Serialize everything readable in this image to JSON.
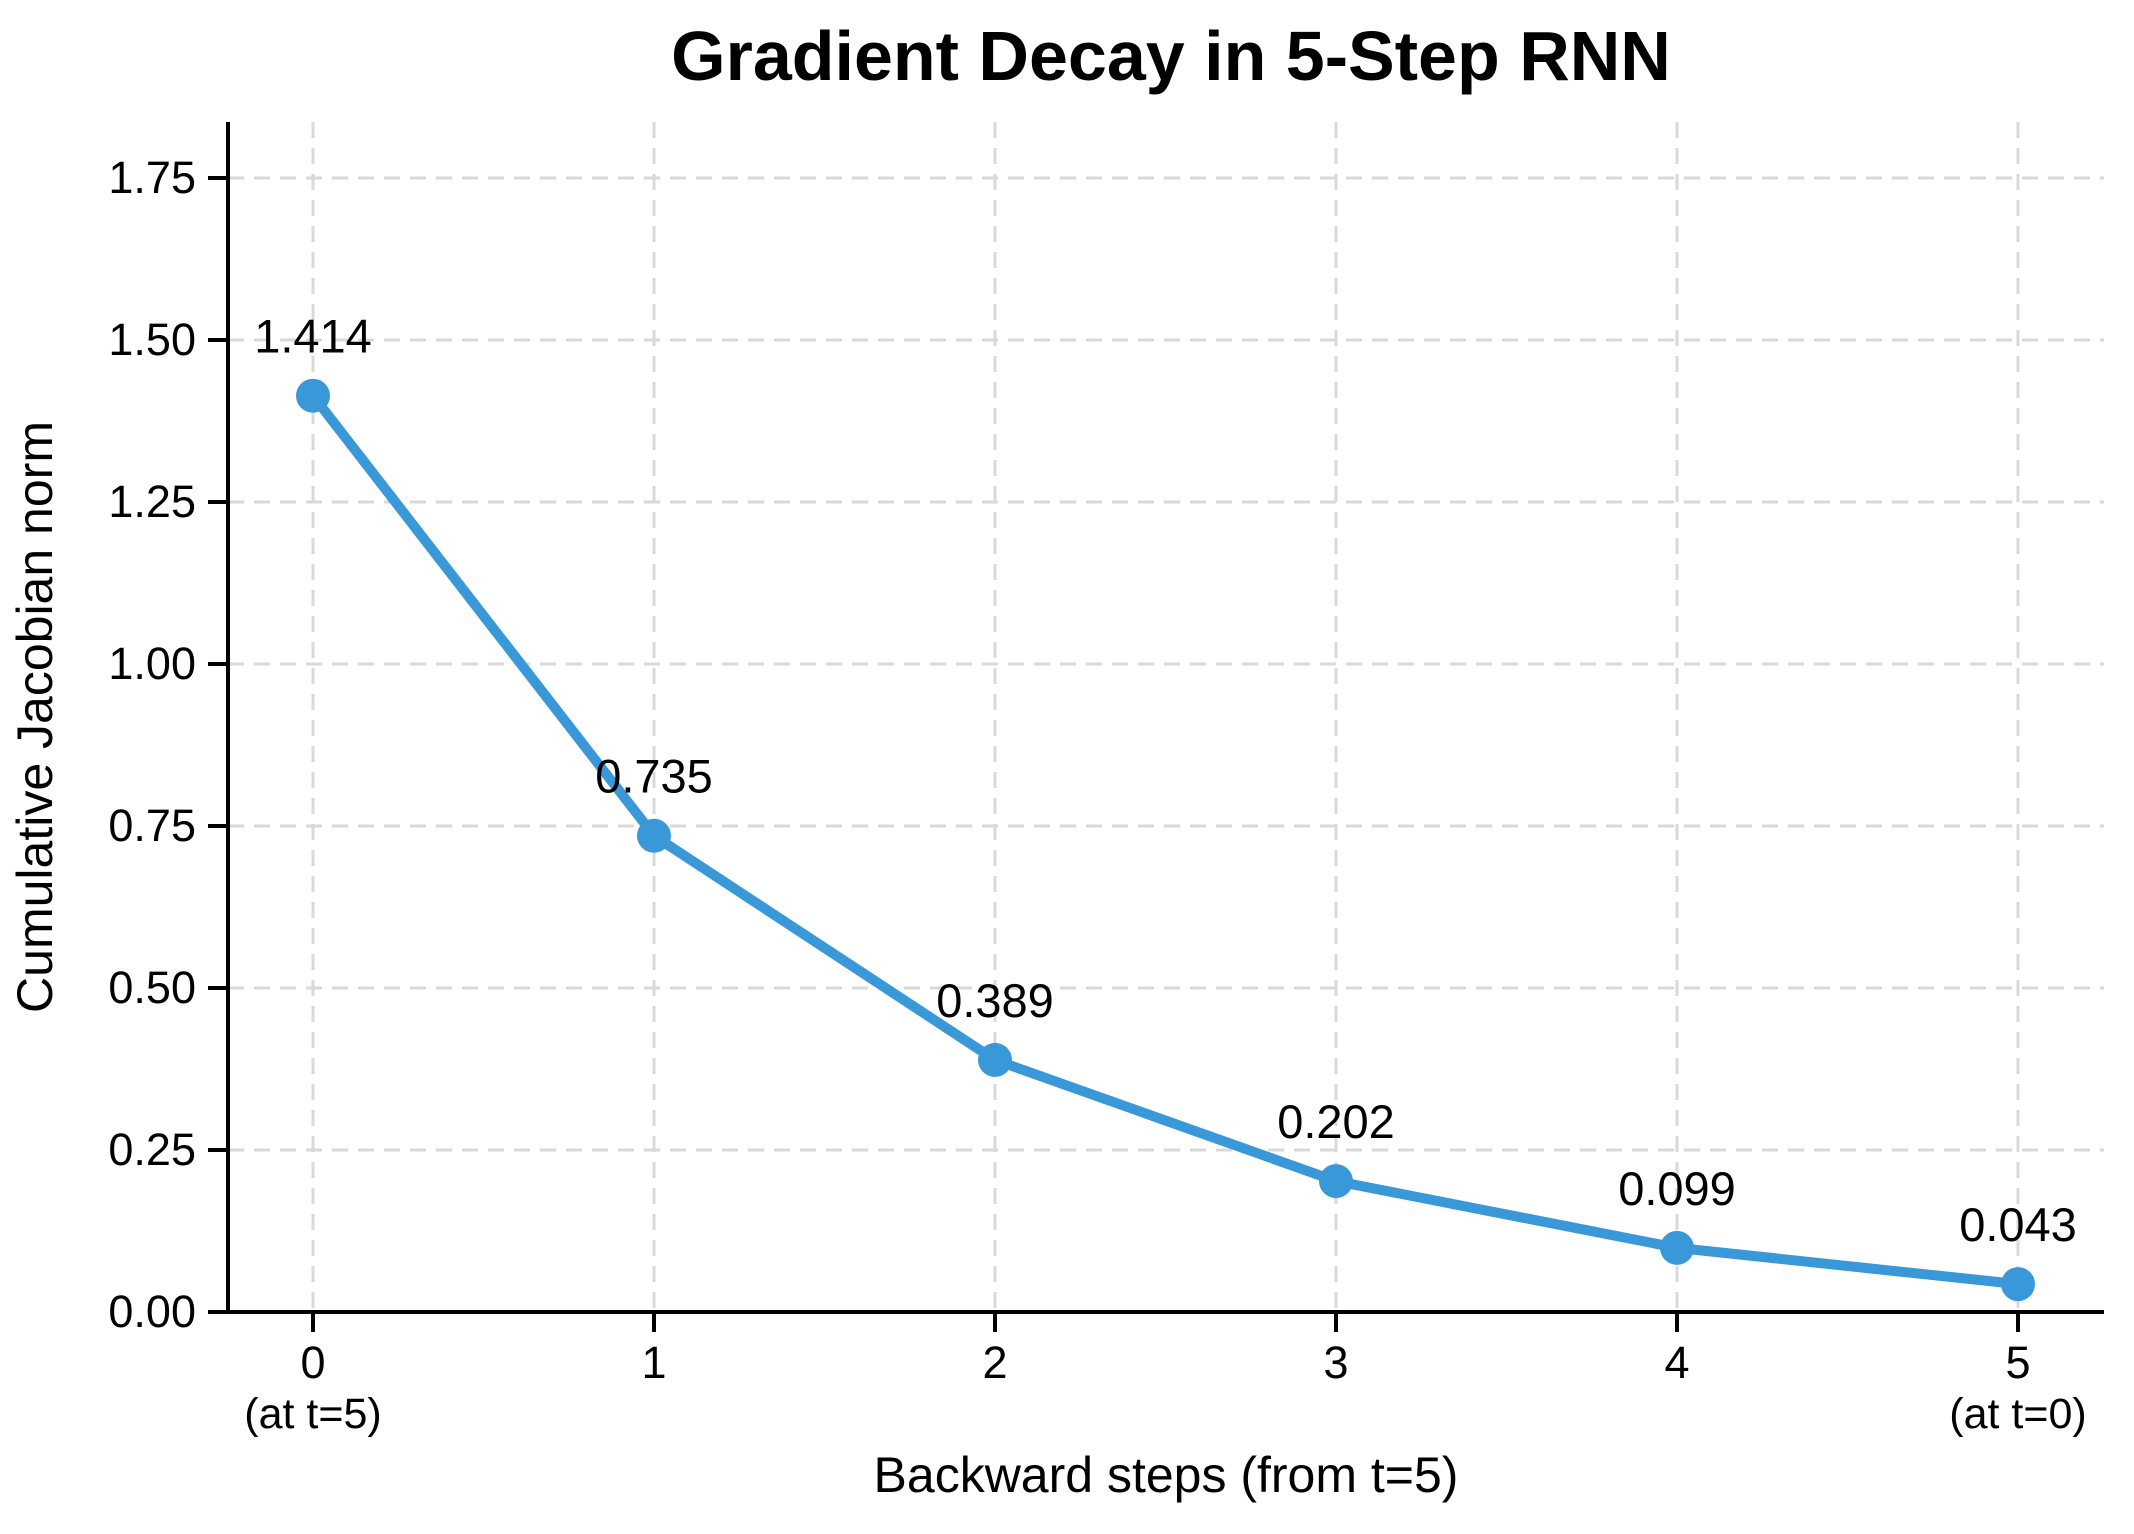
{
  "chart_data": {
    "type": "line",
    "title": "Gradient Decay in 5-Step RNN",
    "xlabel": "Backward steps (from t=5)",
    "ylabel": "Cumulative Jacobian norm",
    "x": [
      0,
      1,
      2,
      3,
      4,
      5
    ],
    "values": [
      1.414,
      0.735,
      0.389,
      0.202,
      0.099,
      0.043
    ],
    "point_labels": [
      "1.414",
      "0.735",
      "0.389",
      "0.202",
      "0.099",
      "0.043"
    ],
    "x_ticks": [
      {
        "label": "0",
        "sublabel": "(at t=5)"
      },
      {
        "label": "1",
        "sublabel": ""
      },
      {
        "label": "2",
        "sublabel": ""
      },
      {
        "label": "3",
        "sublabel": ""
      },
      {
        "label": "4",
        "sublabel": ""
      },
      {
        "label": "5",
        "sublabel": "(at t=0)"
      }
    ],
    "y_ticks": [
      {
        "value": 0.0,
        "label": "0.00"
      },
      {
        "value": 0.25,
        "label": "0.25"
      },
      {
        "value": 0.5,
        "label": "0.50"
      },
      {
        "value": 0.75,
        "label": "0.75"
      },
      {
        "value": 1.0,
        "label": "1.00"
      },
      {
        "value": 1.25,
        "label": "1.25"
      },
      {
        "value": 1.5,
        "label": "1.50"
      },
      {
        "value": 1.75,
        "label": "1.75"
      }
    ],
    "xlim": [
      -0.25,
      5.25
    ],
    "ylim": [
      0,
      1.84
    ],
    "grid": "dashed",
    "legend": null,
    "colors": {
      "line": "#3898d8",
      "marker": "#3898d8",
      "grid": "#d9d9d9",
      "axis": "#000000",
      "text": "#000000"
    }
  }
}
